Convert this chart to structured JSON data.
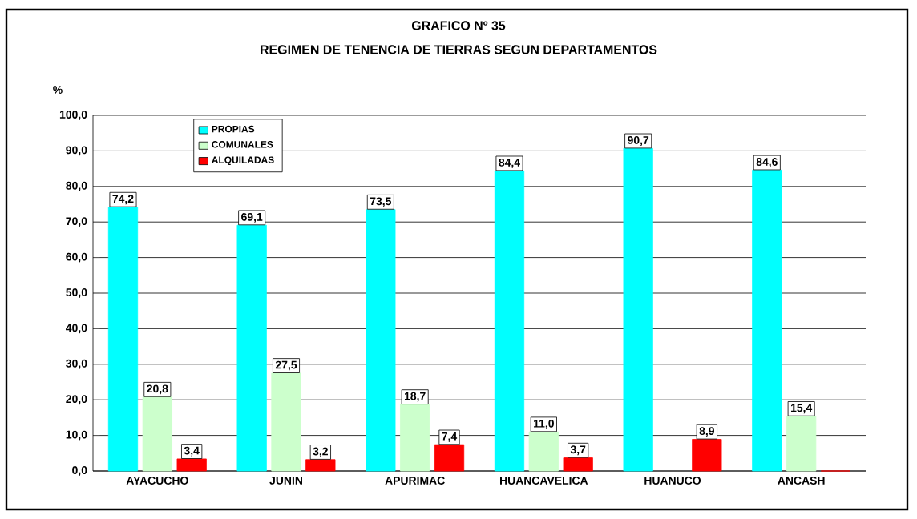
{
  "chart_data": {
    "type": "bar",
    "title": "GRAFICO Nº 35",
    "subtitle": "REGIMEN DE TENENCIA DE TIERRAS SEGUN DEPARTAMENTOS",
    "ylabel": "%",
    "categories": [
      "AYACUCHO",
      "JUNIN",
      "APURIMAC",
      "HUANCAVELICA",
      "HUANUCO",
      "ANCASH"
    ],
    "series": [
      {
        "name": "PROPIAS",
        "color": "#00ffff",
        "values": [
          74.2,
          69.1,
          73.5,
          84.4,
          90.7,
          84.6
        ],
        "value_labels": [
          "74,2",
          "69,1",
          "73,5",
          "84,4",
          "90,7",
          "84,6"
        ]
      },
      {
        "name": "COMUNALES",
        "color": "#ccffcc",
        "values": [
          20.8,
          27.5,
          18.7,
          11.0,
          null,
          15.4
        ],
        "value_labels": [
          "20,8",
          "27,5",
          "18,7",
          "11,0",
          null,
          "15,4"
        ]
      },
      {
        "name": "ALQUILADAS",
        "color": "#ff0000",
        "values": [
          3.4,
          3.2,
          7.4,
          3.7,
          8.9,
          0
        ],
        "value_labels": [
          "3,4",
          "3,2",
          "7,4",
          "3,7",
          "8,9",
          null
        ]
      }
    ],
    "ylim": [
      0,
      100
    ],
    "yticks": [
      {
        "value": 0,
        "label": "0,0"
      },
      {
        "value": 10,
        "label": "10,0"
      },
      {
        "value": 20,
        "label": "20,0"
      },
      {
        "value": 30,
        "label": "30,0"
      },
      {
        "value": 40,
        "label": "40,0"
      },
      {
        "value": 50,
        "label": "50,0"
      },
      {
        "value": 60,
        "label": "60,0"
      },
      {
        "value": 70,
        "label": "70,0"
      },
      {
        "value": 80,
        "label": "80,0"
      },
      {
        "value": 90,
        "label": "90,0"
      },
      {
        "value": 100,
        "label": "100,0"
      }
    ],
    "grid": "y",
    "legend": "top left"
  }
}
